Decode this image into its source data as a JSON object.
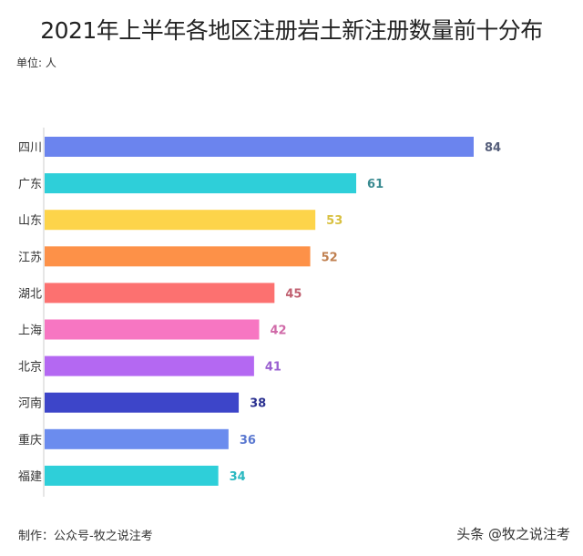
{
  "chart_data": {
    "type": "bar",
    "orientation": "horizontal",
    "title": "2021年上半年各地区注册岩土新注册数量前十分布",
    "unit_label": "单位: 人",
    "categories": [
      "四川",
      "广东",
      "山东",
      "江苏",
      "湖北",
      "上海",
      "北京",
      "河南",
      "重庆",
      "福建"
    ],
    "values": [
      84,
      61,
      53,
      52,
      45,
      42,
      41,
      38,
      36,
      34
    ],
    "colors": [
      "#6b84ee",
      "#2ecfd9",
      "#fdd44a",
      "#fd9148",
      "#fc7170",
      "#f776c2",
      "#b468f2",
      "#3d45c9",
      "#6b8cee",
      "#2ecfd9"
    ],
    "label_colors": [
      "#555e7a",
      "#3a8a90",
      "#d8c040",
      "#c08050",
      "#c06070",
      "#d06aa8",
      "#9a60d0",
      "#2a3090",
      "#5a78d0",
      "#2ab8c0"
    ],
    "xlim": [
      0,
      84
    ],
    "grid": false
  },
  "footer": {
    "credit": "制作：公众号-牧之说注考",
    "watermark": "头条 @牧之说注考"
  }
}
